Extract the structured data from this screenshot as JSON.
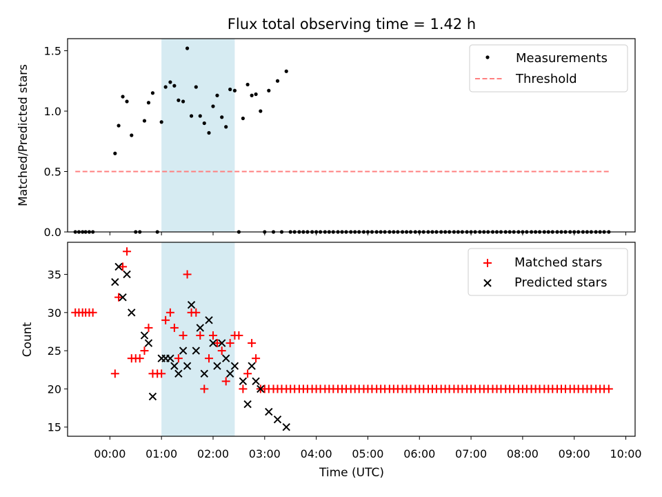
{
  "chart_data": {
    "title": "Flux total observing time = 1.42 h",
    "xlabel": "Time (UTC)",
    "x_unit": "hours UTC (0 = 00:00)",
    "xlim": [
      -0.82,
      10.18
    ],
    "xticks": [
      {
        "value": 0,
        "label": "00:00"
      },
      {
        "value": 1,
        "label": "01:00"
      },
      {
        "value": 2,
        "label": "02:00"
      },
      {
        "value": 3,
        "label": "03:00"
      },
      {
        "value": 4,
        "label": "04:00"
      },
      {
        "value": 5,
        "label": "05:00"
      },
      {
        "value": 6,
        "label": "06:00"
      },
      {
        "value": 7,
        "label": "07:00"
      },
      {
        "value": 8,
        "label": "08:00"
      },
      {
        "value": 9,
        "label": "09:00"
      },
      {
        "value": 10,
        "label": "10:00"
      }
    ],
    "highlight_span": [
      1.0,
      2.42
    ],
    "top": {
      "type": "scatter",
      "ylabel": "Matched/Predicted stars",
      "ylim": [
        0,
        1.6
      ],
      "yticks": [
        {
          "value": 0,
          "label": "0.0"
        },
        {
          "value": 0.5,
          "label": "0.5"
        },
        {
          "value": 1,
          "label": "1.0"
        },
        {
          "value": 1.5,
          "label": "1.5"
        }
      ],
      "legend": {
        "position": "top-right",
        "entries": [
          "Measurements",
          "Threshold"
        ]
      },
      "measurements": {
        "name": "Measurements",
        "points": [
          [
            -0.67,
            0
          ],
          [
            -0.6,
            0
          ],
          [
            -0.53,
            0
          ],
          [
            -0.47,
            0
          ],
          [
            -0.4,
            0
          ],
          [
            -0.33,
            0
          ],
          [
            0.1,
            0.65
          ],
          [
            0.17,
            0.88
          ],
          [
            0.25,
            1.12
          ],
          [
            0.33,
            1.08
          ],
          [
            0.42,
            0.8
          ],
          [
            0.5,
            0
          ],
          [
            0.58,
            0
          ],
          [
            0.67,
            0.92
          ],
          [
            0.75,
            1.07
          ],
          [
            0.83,
            1.15
          ],
          [
            0.92,
            0
          ],
          [
            1.0,
            0.91
          ],
          [
            1.08,
            1.2
          ],
          [
            1.17,
            1.24
          ],
          [
            1.25,
            1.21
          ],
          [
            1.33,
            1.09
          ],
          [
            1.42,
            1.08
          ],
          [
            1.5,
            1.52
          ],
          [
            1.58,
            0.96
          ],
          [
            1.67,
            1.2
          ],
          [
            1.75,
            0.96
          ],
          [
            1.83,
            0.9
          ],
          [
            1.92,
            0.82
          ],
          [
            2.0,
            1.04
          ],
          [
            2.08,
            1.13
          ],
          [
            2.17,
            0.95
          ],
          [
            2.25,
            0.87
          ],
          [
            2.33,
            1.18
          ],
          [
            2.42,
            1.17
          ],
          [
            2.5,
            0
          ],
          [
            2.58,
            0.94
          ],
          [
            2.67,
            1.22
          ],
          [
            2.75,
            1.13
          ],
          [
            2.83,
            1.14
          ],
          [
            2.92,
            1.0
          ],
          [
            3.0,
            0
          ],
          [
            3.08,
            1.17
          ],
          [
            3.17,
            0
          ],
          [
            3.25,
            1.25
          ],
          [
            3.33,
            0
          ],
          [
            3.42,
            1.33
          ],
          [
            3.5,
            0
          ],
          [
            3.58,
            0
          ],
          [
            3.67,
            0
          ],
          [
            3.75,
            0
          ],
          [
            3.83,
            0
          ],
          [
            3.92,
            0
          ],
          [
            4.0,
            0
          ],
          [
            4.08,
            0
          ],
          [
            4.17,
            0
          ],
          [
            4.25,
            0
          ],
          [
            4.33,
            0
          ],
          [
            4.42,
            0
          ],
          [
            4.5,
            0
          ],
          [
            4.58,
            0
          ],
          [
            4.67,
            0
          ],
          [
            4.75,
            0
          ],
          [
            4.83,
            0
          ],
          [
            4.92,
            0
          ],
          [
            5.0,
            0
          ],
          [
            5.08,
            0
          ],
          [
            5.17,
            0
          ],
          [
            5.25,
            0
          ],
          [
            5.33,
            0
          ],
          [
            5.42,
            0
          ],
          [
            5.5,
            0
          ],
          [
            5.58,
            0
          ],
          [
            5.67,
            0
          ],
          [
            5.75,
            0
          ],
          [
            5.83,
            0
          ],
          [
            5.92,
            0
          ],
          [
            6.0,
            0
          ],
          [
            6.08,
            0
          ],
          [
            6.17,
            0
          ],
          [
            6.25,
            0
          ],
          [
            6.33,
            0
          ],
          [
            6.42,
            0
          ],
          [
            6.5,
            0
          ],
          [
            6.58,
            0
          ],
          [
            6.67,
            0
          ],
          [
            6.75,
            0
          ],
          [
            6.83,
            0
          ],
          [
            6.92,
            0
          ],
          [
            7.0,
            0
          ],
          [
            7.08,
            0
          ],
          [
            7.17,
            0
          ],
          [
            7.25,
            0
          ],
          [
            7.33,
            0
          ],
          [
            7.42,
            0
          ],
          [
            7.5,
            0
          ],
          [
            7.58,
            0
          ],
          [
            7.67,
            0
          ],
          [
            7.75,
            0
          ],
          [
            7.83,
            0
          ],
          [
            7.92,
            0
          ],
          [
            8.0,
            0
          ],
          [
            8.08,
            0
          ],
          [
            8.17,
            0
          ],
          [
            8.25,
            0
          ],
          [
            8.33,
            0
          ],
          [
            8.42,
            0
          ],
          [
            8.5,
            0
          ],
          [
            8.58,
            0
          ],
          [
            8.67,
            0
          ],
          [
            8.75,
            0
          ],
          [
            8.83,
            0
          ],
          [
            8.92,
            0
          ],
          [
            9.0,
            0
          ],
          [
            9.08,
            0
          ],
          [
            9.17,
            0
          ],
          [
            9.25,
            0
          ],
          [
            9.33,
            0
          ],
          [
            9.42,
            0
          ],
          [
            9.5,
            0
          ],
          [
            9.58,
            0
          ],
          [
            9.67,
            0
          ]
        ]
      },
      "threshold": {
        "name": "Threshold",
        "value": 0.5,
        "x_range": [
          -0.67,
          9.67
        ],
        "color": "#ff7f7f"
      }
    },
    "bottom": {
      "type": "scatter",
      "ylabel": "Count",
      "ylim": [
        13.8,
        39.2
      ],
      "yticks": [
        {
          "value": 15,
          "label": "15"
        },
        {
          "value": 20,
          "label": "20"
        },
        {
          "value": 25,
          "label": "25"
        },
        {
          "value": 30,
          "label": "30"
        },
        {
          "value": 35,
          "label": "35"
        }
      ],
      "legend": {
        "position": "top-right",
        "entries": [
          "Matched stars",
          "Predicted stars"
        ]
      },
      "matched": {
        "name": "Matched stars",
        "color": "#ff0000",
        "marker": "plus",
        "points": [
          [
            -0.67,
            30
          ],
          [
            -0.6,
            30
          ],
          [
            -0.53,
            30
          ],
          [
            -0.47,
            30
          ],
          [
            -0.4,
            30
          ],
          [
            -0.33,
            30
          ],
          [
            0.1,
            22
          ],
          [
            0.17,
            32
          ],
          [
            0.25,
            36
          ],
          [
            0.33,
            38
          ],
          [
            0.42,
            24
          ],
          [
            0.5,
            24
          ],
          [
            0.58,
            24
          ],
          [
            0.67,
            25
          ],
          [
            0.75,
            28
          ],
          [
            0.83,
            22
          ],
          [
            0.92,
            22
          ],
          [
            1.0,
            22
          ],
          [
            1.08,
            29
          ],
          [
            1.17,
            30
          ],
          [
            1.25,
            28
          ],
          [
            1.33,
            24
          ],
          [
            1.42,
            27
          ],
          [
            1.5,
            35
          ],
          [
            1.58,
            30
          ],
          [
            1.67,
            30
          ],
          [
            1.75,
            27
          ],
          [
            1.83,
            20
          ],
          [
            1.92,
            24
          ],
          [
            2.0,
            27
          ],
          [
            2.08,
            26
          ],
          [
            2.17,
            25
          ],
          [
            2.25,
            21
          ],
          [
            2.33,
            26
          ],
          [
            2.42,
            27
          ],
          [
            2.5,
            27
          ],
          [
            2.58,
            20
          ],
          [
            2.67,
            22
          ],
          [
            2.75,
            26
          ],
          [
            2.83,
            24
          ],
          [
            2.92,
            20
          ],
          [
            3.0,
            20
          ],
          [
            3.08,
            20
          ],
          [
            3.17,
            20
          ],
          [
            3.25,
            20
          ],
          [
            3.33,
            20
          ],
          [
            3.42,
            20
          ],
          [
            3.5,
            20
          ],
          [
            3.58,
            20
          ],
          [
            3.67,
            20
          ],
          [
            3.75,
            20
          ],
          [
            3.83,
            20
          ],
          [
            3.92,
            20
          ],
          [
            4.0,
            20
          ],
          [
            4.08,
            20
          ],
          [
            4.17,
            20
          ],
          [
            4.25,
            20
          ],
          [
            4.33,
            20
          ],
          [
            4.42,
            20
          ],
          [
            4.5,
            20
          ],
          [
            4.58,
            20
          ],
          [
            4.67,
            20
          ],
          [
            4.75,
            20
          ],
          [
            4.83,
            20
          ],
          [
            4.92,
            20
          ],
          [
            5.0,
            20
          ],
          [
            5.08,
            20
          ],
          [
            5.17,
            20
          ],
          [
            5.25,
            20
          ],
          [
            5.33,
            20
          ],
          [
            5.42,
            20
          ],
          [
            5.5,
            20
          ],
          [
            5.58,
            20
          ],
          [
            5.67,
            20
          ],
          [
            5.75,
            20
          ],
          [
            5.83,
            20
          ],
          [
            5.92,
            20
          ],
          [
            6.0,
            20
          ],
          [
            6.08,
            20
          ],
          [
            6.17,
            20
          ],
          [
            6.25,
            20
          ],
          [
            6.33,
            20
          ],
          [
            6.42,
            20
          ],
          [
            6.5,
            20
          ],
          [
            6.58,
            20
          ],
          [
            6.67,
            20
          ],
          [
            6.75,
            20
          ],
          [
            6.83,
            20
          ],
          [
            6.92,
            20
          ],
          [
            7.0,
            20
          ],
          [
            7.08,
            20
          ],
          [
            7.17,
            20
          ],
          [
            7.25,
            20
          ],
          [
            7.33,
            20
          ],
          [
            7.42,
            20
          ],
          [
            7.5,
            20
          ],
          [
            7.58,
            20
          ],
          [
            7.67,
            20
          ],
          [
            7.75,
            20
          ],
          [
            7.83,
            20
          ],
          [
            7.92,
            20
          ],
          [
            8.0,
            20
          ],
          [
            8.08,
            20
          ],
          [
            8.17,
            20
          ],
          [
            8.25,
            20
          ],
          [
            8.33,
            20
          ],
          [
            8.42,
            20
          ],
          [
            8.5,
            20
          ],
          [
            8.58,
            20
          ],
          [
            8.67,
            20
          ],
          [
            8.75,
            20
          ],
          [
            8.83,
            20
          ],
          [
            8.92,
            20
          ],
          [
            9.0,
            20
          ],
          [
            9.08,
            20
          ],
          [
            9.17,
            20
          ],
          [
            9.25,
            20
          ],
          [
            9.33,
            20
          ],
          [
            9.42,
            20
          ],
          [
            9.5,
            20
          ],
          [
            9.58,
            20
          ],
          [
            9.67,
            20
          ]
        ]
      },
      "predicted": {
        "name": "Predicted stars",
        "color": "#000000",
        "marker": "x",
        "points": [
          [
            0.1,
            34
          ],
          [
            0.17,
            36
          ],
          [
            0.25,
            32
          ],
          [
            0.33,
            35
          ],
          [
            0.42,
            30
          ],
          [
            0.67,
            27
          ],
          [
            0.75,
            26
          ],
          [
            0.83,
            19
          ],
          [
            1.0,
            24
          ],
          [
            1.08,
            24
          ],
          [
            1.17,
            24
          ],
          [
            1.25,
            23
          ],
          [
            1.33,
            22
          ],
          [
            1.42,
            25
          ],
          [
            1.5,
            23
          ],
          [
            1.58,
            31
          ],
          [
            1.67,
            25
          ],
          [
            1.75,
            28
          ],
          [
            1.83,
            22
          ],
          [
            1.92,
            29
          ],
          [
            2.0,
            26
          ],
          [
            2.08,
            23
          ],
          [
            2.17,
            26
          ],
          [
            2.25,
            24
          ],
          [
            2.33,
            22
          ],
          [
            2.42,
            23
          ],
          [
            2.58,
            21
          ],
          [
            2.67,
            18
          ],
          [
            2.75,
            23
          ],
          [
            2.83,
            21
          ],
          [
            2.92,
            20
          ],
          [
            3.08,
            17
          ],
          [
            3.25,
            16
          ],
          [
            3.42,
            15
          ]
        ]
      }
    }
  }
}
